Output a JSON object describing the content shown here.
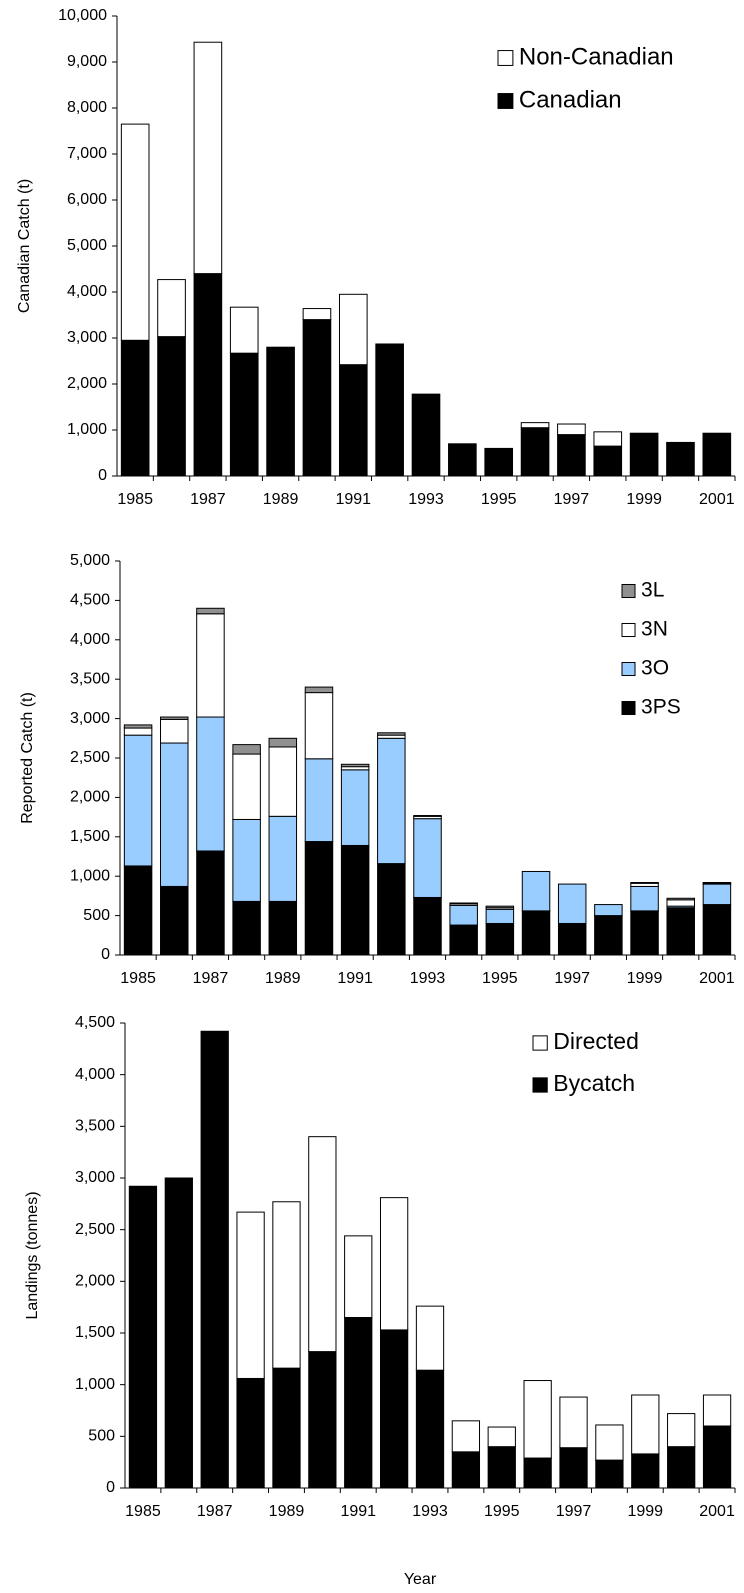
{
  "chart_data": [
    {
      "type": "bar",
      "stacked": true,
      "ylabel": "Canadian Catch (t)",
      "categories": [
        "1985",
        null,
        "1987",
        null,
        "1989",
        null,
        "1991",
        null,
        "1993",
        null,
        "1995",
        null,
        "1997",
        null,
        "1999",
        null,
        "2001"
      ],
      "series": [
        {
          "name": "Canadian",
          "color": "#000000",
          "values": [
            2950,
            3030,
            4400,
            2670,
            2800,
            3400,
            2420,
            2870,
            1780,
            700,
            600,
            1050,
            900,
            650,
            930,
            730,
            930
          ]
        },
        {
          "name": "Non-Canadian",
          "color": "#ffffff",
          "values": [
            4700,
            1240,
            5030,
            1000,
            0,
            240,
            1530,
            0,
            0,
            0,
            0,
            110,
            230,
            310,
            0,
            0,
            0
          ]
        }
      ],
      "ylim": [
        0,
        10000
      ],
      "yticks": [
        0,
        {
          "value": 1000,
          "label": "1,000"
        },
        {
          "value": 2000,
          "label": "2,000"
        },
        {
          "value": 3000,
          "label": "3,000"
        },
        {
          "value": 4000,
          "label": "4,000"
        },
        {
          "value": 5000,
          "label": "5,000"
        },
        {
          "value": 6000,
          "label": "6,000"
        },
        {
          "value": 7000,
          "label": "7,000"
        },
        {
          "value": 8000,
          "label": "8,000"
        },
        {
          "value": 9000,
          "label": "9,000"
        },
        {
          "value": 10000,
          "label": "10,000"
        }
      ],
      "legend": "upper right"
    },
    {
      "type": "bar",
      "stacked": true,
      "ylabel": "Reported Catch (t)",
      "categories": [
        "1985",
        null,
        "1987",
        null,
        "1989",
        null,
        "1991",
        null,
        "1993",
        null,
        "1995",
        null,
        "1997",
        null,
        "1999",
        null,
        "2001"
      ],
      "series": [
        {
          "name": "3PS",
          "color": "#000000",
          "values": [
            1130,
            870,
            1320,
            680,
            680,
            1440,
            1390,
            1160,
            730,
            380,
            400,
            560,
            400,
            500,
            560,
            600,
            640
          ]
        },
        {
          "name": "3O",
          "color": "#99ccff",
          "values": [
            1660,
            1820,
            1700,
            1040,
            1080,
            1050,
            960,
            1590,
            1000,
            250,
            180,
            500,
            500,
            140,
            310,
            20,
            260
          ]
        },
        {
          "name": "3N",
          "color": "#ffffff",
          "values": [
            90,
            300,
            1310,
            830,
            880,
            840,
            40,
            40,
            30,
            20,
            20,
            0,
            0,
            0,
            40,
            80,
            10
          ]
        },
        {
          "name": "3L",
          "color": "#909090",
          "values": [
            40,
            30,
            70,
            120,
            110,
            70,
            30,
            30,
            10,
            10,
            20,
            0,
            0,
            0,
            10,
            20,
            10
          ]
        }
      ],
      "ylim": [
        0,
        5000
      ],
      "yticks": [
        0,
        500,
        {
          "value": 1000,
          "label": "1,000"
        },
        {
          "value": 1500,
          "label": "1,500"
        },
        {
          "value": 2000,
          "label": "2,000"
        },
        {
          "value": 2500,
          "label": "2,500"
        },
        {
          "value": 3000,
          "label": "3,000"
        },
        {
          "value": 3500,
          "label": "3,500"
        },
        {
          "value": 4000,
          "label": "4,000"
        },
        {
          "value": 4500,
          "label": "4,500"
        },
        {
          "value": 5000,
          "label": "5,000"
        }
      ],
      "legend": "upper right"
    },
    {
      "type": "bar",
      "stacked": true,
      "ylabel": "Landings (tonnes)",
      "xlabel": "Year",
      "categories": [
        "1985",
        null,
        "1987",
        null,
        "1989",
        null,
        "1991",
        null,
        "1993",
        null,
        "1995",
        null,
        "1997",
        null,
        "1999",
        null,
        "2001"
      ],
      "series": [
        {
          "name": "Bycatch",
          "color": "#000000",
          "values": [
            2920,
            3000,
            4420,
            1060,
            1160,
            1320,
            1650,
            1530,
            1140,
            350,
            400,
            290,
            390,
            270,
            330,
            400,
            600
          ]
        },
        {
          "name": "Directed",
          "color": "#ffffff",
          "values": [
            0,
            0,
            0,
            1610,
            1610,
            2080,
            790,
            1280,
            620,
            300,
            190,
            750,
            490,
            340,
            570,
            320,
            300
          ]
        }
      ],
      "ylim": [
        0,
        4500
      ],
      "yticks": [
        0,
        500,
        {
          "value": 1000,
          "label": "1,000"
        },
        {
          "value": 1500,
          "label": "1,500"
        },
        {
          "value": 2000,
          "label": "2,000"
        },
        {
          "value": 2500,
          "label": "2,500"
        },
        {
          "value": 3000,
          "label": "3,000"
        },
        {
          "value": 3500,
          "label": "3,500"
        },
        {
          "value": 4000,
          "label": "4,000"
        },
        {
          "value": 4500,
          "label": "4,500"
        }
      ],
      "legend": "upper right"
    }
  ]
}
